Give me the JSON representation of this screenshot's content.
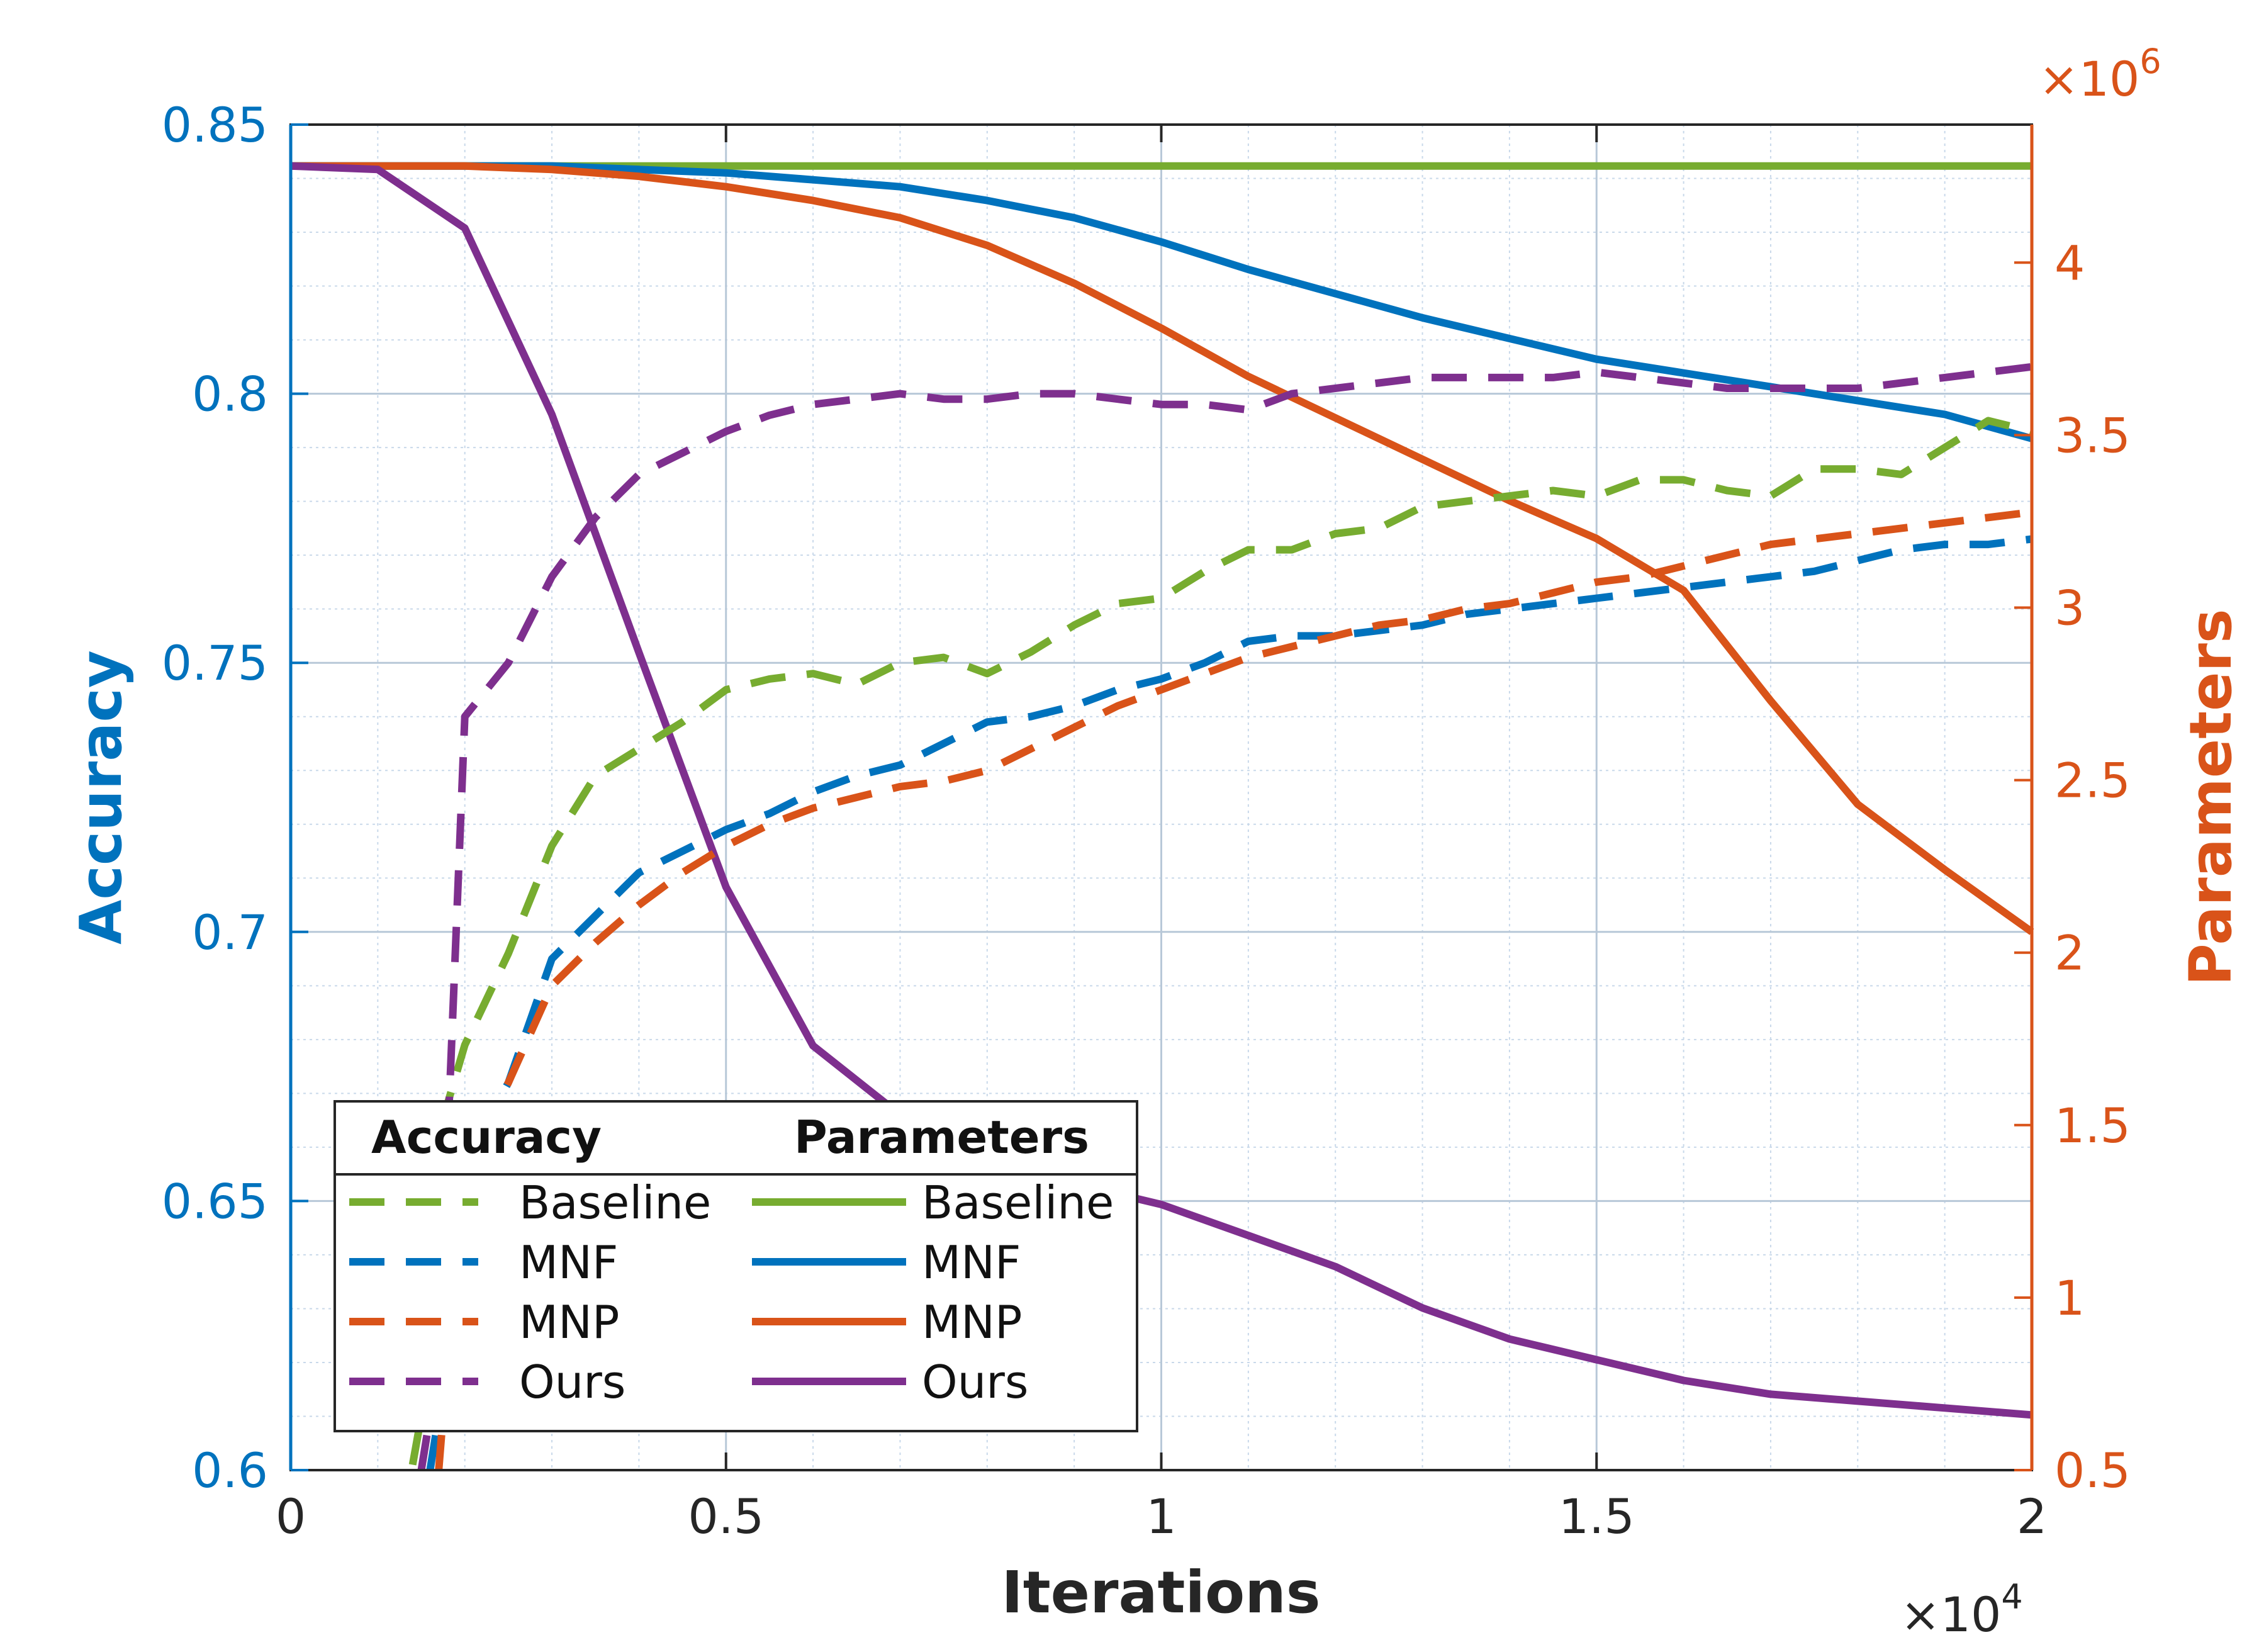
{
  "colors": {
    "left_axis": "#0072BD",
    "right_axis": "#D95319",
    "baseline": "#77AC30",
    "mnf": "#0072BD",
    "mnp": "#D95319",
    "ours": "#7E2F8E",
    "axis_text": "#262626"
  },
  "chart_data": {
    "type": "line",
    "xlabel": "Iterations",
    "x_multiplier": "×10",
    "x_multiplier_exp": "4",
    "ylabel_left": "Accuracy",
    "ylabel_right": "Parameters",
    "y_right_multiplier": "×10",
    "y_right_multiplier_exp": "6",
    "xlim": [
      0,
      2
    ],
    "ylim_left": [
      0.6,
      0.85
    ],
    "ylim_right": [
      0.5,
      4.4
    ],
    "x_ticks": [
      0,
      0.5,
      1,
      1.5,
      2
    ],
    "x_tick_labels": [
      "0",
      "0.5",
      "1",
      "1.5",
      "2"
    ],
    "y_left_ticks": [
      0.6,
      0.65,
      0.7,
      0.75,
      0.8,
      0.85
    ],
    "y_left_tick_labels": [
      "0.6",
      "0.65",
      "0.7",
      "0.75",
      "0.8",
      "0.85"
    ],
    "y_right_ticks": [
      0.5,
      1,
      1.5,
      2,
      2.5,
      3,
      3.5,
      4
    ],
    "y_right_tick_labels": [
      "0.5",
      "1",
      "1.5",
      "2",
      "2.5",
      "3",
      "3.5",
      "4"
    ],
    "grid": true,
    "legend": {
      "placement": "bottom-left",
      "header_left": "Accuracy",
      "header_right": "Parameters",
      "entries": [
        "Baseline",
        "MNF",
        "MNP",
        "Ours"
      ]
    },
    "accuracy_series": [
      {
        "name": "Baseline",
        "color_key": "baseline",
        "x": [
          0.14,
          0.15,
          0.16,
          0.17,
          0.18,
          0.2,
          0.25,
          0.3,
          0.35,
          0.4,
          0.45,
          0.5,
          0.55,
          0.6,
          0.65,
          0.7,
          0.75,
          0.8,
          0.85,
          0.9,
          0.95,
          1.0,
          1.05,
          1.1,
          1.15,
          1.2,
          1.25,
          1.3,
          1.35,
          1.4,
          1.45,
          1.5,
          1.55,
          1.6,
          1.65,
          1.7,
          1.75,
          1.8,
          1.85,
          1.9,
          1.95,
          2.0
        ],
        "y": [
          0.601,
          0.61,
          0.63,
          0.655,
          0.668,
          0.679,
          0.696,
          0.716,
          0.729,
          0.734,
          0.739,
          0.745,
          0.747,
          0.748,
          0.746,
          0.75,
          0.751,
          0.748,
          0.752,
          0.757,
          0.761,
          0.762,
          0.767,
          0.771,
          0.771,
          0.774,
          0.775,
          0.779,
          0.78,
          0.781,
          0.782,
          0.781,
          0.784,
          0.784,
          0.782,
          0.781,
          0.786,
          0.786,
          0.785,
          0.79,
          0.795,
          0.793
        ]
      },
      {
        "name": "MNF",
        "color_key": "mnf",
        "x": [
          0.16,
          0.17,
          0.18,
          0.2,
          0.25,
          0.3,
          0.35,
          0.4,
          0.45,
          0.5,
          0.55,
          0.6,
          0.65,
          0.7,
          0.75,
          0.8,
          0.85,
          0.9,
          0.95,
          1.0,
          1.05,
          1.1,
          1.15,
          1.2,
          1.25,
          1.3,
          1.35,
          1.4,
          1.45,
          1.5,
          1.55,
          1.6,
          1.65,
          1.7,
          1.75,
          1.8,
          1.85,
          1.9,
          1.95,
          2.0
        ],
        "y": [
          0.6,
          0.61,
          0.63,
          0.657,
          0.672,
          0.695,
          0.703,
          0.711,
          0.715,
          0.719,
          0.722,
          0.726,
          0.729,
          0.731,
          0.735,
          0.739,
          0.74,
          0.742,
          0.745,
          0.747,
          0.75,
          0.754,
          0.755,
          0.755,
          0.756,
          0.757,
          0.759,
          0.76,
          0.761,
          0.762,
          0.763,
          0.764,
          0.765,
          0.766,
          0.767,
          0.769,
          0.771,
          0.772,
          0.772,
          0.773
        ]
      },
      {
        "name": "MNP",
        "color_key": "mnp",
        "x": [
          0.17,
          0.18,
          0.2,
          0.25,
          0.3,
          0.35,
          0.4,
          0.45,
          0.5,
          0.55,
          0.6,
          0.65,
          0.7,
          0.75,
          0.8,
          0.85,
          0.9,
          0.95,
          1.0,
          1.05,
          1.1,
          1.15,
          1.2,
          1.25,
          1.3,
          1.35,
          1.4,
          1.45,
          1.5,
          1.55,
          1.6,
          1.65,
          1.7,
          1.75,
          1.8,
          1.85,
          1.9,
          1.95,
          2.0
        ],
        "y": [
          0.6,
          0.62,
          0.656,
          0.672,
          0.69,
          0.698,
          0.705,
          0.711,
          0.716,
          0.72,
          0.723,
          0.725,
          0.727,
          0.728,
          0.73,
          0.734,
          0.738,
          0.742,
          0.745,
          0.748,
          0.751,
          0.753,
          0.755,
          0.757,
          0.758,
          0.76,
          0.761,
          0.763,
          0.765,
          0.766,
          0.768,
          0.77,
          0.772,
          0.773,
          0.774,
          0.775,
          0.776,
          0.777,
          0.778
        ]
      },
      {
        "name": "Ours",
        "color_key": "ours",
        "x": [
          0.15,
          0.17,
          0.18,
          0.19,
          0.2,
          0.25,
          0.3,
          0.35,
          0.4,
          0.45,
          0.5,
          0.55,
          0.6,
          0.65,
          0.7,
          0.75,
          0.8,
          0.85,
          0.9,
          0.95,
          1.0,
          1.05,
          1.1,
          1.15,
          1.2,
          1.25,
          1.3,
          1.35,
          1.4,
          1.45,
          1.5,
          1.55,
          1.6,
          1.65,
          1.7,
          1.75,
          1.8,
          1.85,
          1.9,
          1.95,
          2.0
        ],
        "y": [
          0.6,
          0.62,
          0.66,
          0.7,
          0.74,
          0.75,
          0.766,
          0.777,
          0.785,
          0.789,
          0.793,
          0.796,
          0.798,
          0.799,
          0.8,
          0.799,
          0.799,
          0.8,
          0.8,
          0.799,
          0.798,
          0.798,
          0.797,
          0.8,
          0.801,
          0.802,
          0.803,
          0.803,
          0.803,
          0.803,
          0.804,
          0.803,
          0.802,
          0.801,
          0.801,
          0.801,
          0.801,
          0.802,
          0.803,
          0.804,
          0.805
        ]
      }
    ],
    "parameter_series": [
      {
        "name": "Baseline",
        "color_key": "baseline",
        "x": [
          0,
          0.5,
          1.0,
          1.5,
          2.0
        ],
        "y": [
          4.28,
          4.28,
          4.28,
          4.28,
          4.28
        ]
      },
      {
        "name": "MNF",
        "color_key": "mnf",
        "x": [
          0,
          0.1,
          0.2,
          0.3,
          0.4,
          0.5,
          0.6,
          0.7,
          0.8,
          0.9,
          1.0,
          1.1,
          1.2,
          1.3,
          1.4,
          1.5,
          1.6,
          1.7,
          1.8,
          1.9,
          2.0
        ],
        "y": [
          4.28,
          4.28,
          4.28,
          4.28,
          4.27,
          4.26,
          4.24,
          4.22,
          4.18,
          4.13,
          4.06,
          3.98,
          3.91,
          3.84,
          3.78,
          3.72,
          3.68,
          3.64,
          3.6,
          3.56,
          3.49
        ]
      },
      {
        "name": "MNP",
        "color_key": "mnp",
        "x": [
          0,
          0.1,
          0.2,
          0.3,
          0.4,
          0.5,
          0.6,
          0.7,
          0.8,
          0.9,
          1.0,
          1.1,
          1.2,
          1.3,
          1.4,
          1.5,
          1.6,
          1.7,
          1.8,
          1.9,
          2.0
        ],
        "y": [
          4.28,
          4.28,
          4.28,
          4.27,
          4.25,
          4.22,
          4.18,
          4.13,
          4.05,
          3.94,
          3.81,
          3.67,
          3.55,
          3.43,
          3.31,
          3.2,
          3.05,
          2.73,
          2.43,
          2.24,
          2.06
        ]
      },
      {
        "name": "Ours",
        "color_key": "ours",
        "x": [
          0,
          0.1,
          0.2,
          0.3,
          0.4,
          0.5,
          0.6,
          0.7,
          0.8,
          0.9,
          1.0,
          1.1,
          1.2,
          1.3,
          1.4,
          1.5,
          1.6,
          1.7,
          1.8,
          1.9,
          2.0
        ],
        "y": [
          4.28,
          4.27,
          4.1,
          3.56,
          2.87,
          2.19,
          1.73,
          1.53,
          1.41,
          1.33,
          1.27,
          1.18,
          1.09,
          0.97,
          0.88,
          0.82,
          0.76,
          0.72,
          0.7,
          0.68,
          0.66
        ]
      }
    ]
  }
}
